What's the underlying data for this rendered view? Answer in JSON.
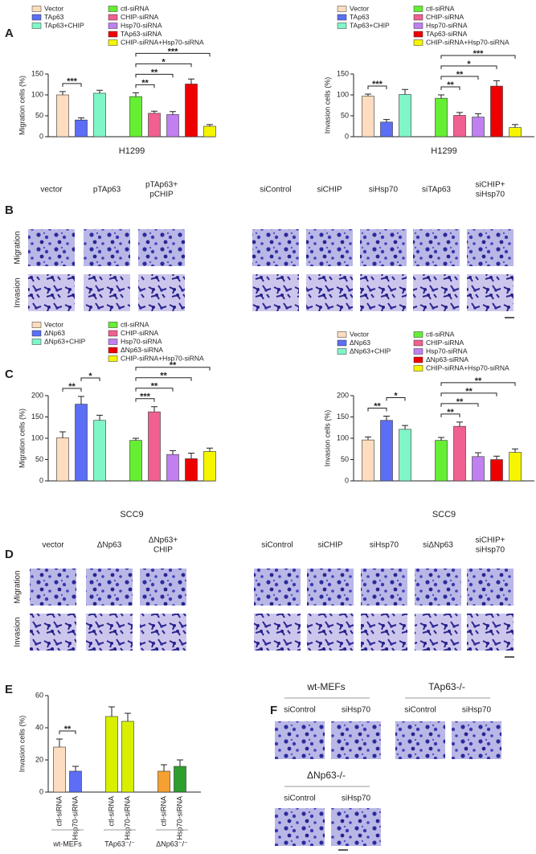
{
  "panel_labels": [
    "A",
    "B",
    "C",
    "D",
    "E",
    "F"
  ],
  "chart_data": [
    {
      "type": "bar",
      "y_label": "Migration cells (%)",
      "x_label": "H1299",
      "ylim": [
        0,
        150
      ],
      "yticks": [
        0,
        50,
        100,
        150
      ],
      "series": [
        {
          "name": "Vector",
          "color": "#fddcbf",
          "values": [
            100
          ],
          "errors": [
            8
          ]
        },
        {
          "name": "TAp63",
          "color": "#5b6ef5",
          "values": [
            40
          ],
          "errors": [
            5
          ]
        },
        {
          "name": "TAp63+CHIP",
          "color": "#80f5c8",
          "values": [
            104
          ],
          "errors": [
            7
          ]
        },
        {
          "name": "ctl-siRNA",
          "color": "#66ee33",
          "values": [
            96
          ],
          "errors": [
            9
          ]
        },
        {
          "name": "CHIP-siRNA",
          "color": "#f06090",
          "values": [
            56
          ],
          "errors": [
            5
          ]
        },
        {
          "name": "Hsp70-siRNA",
          "color": "#c080f0",
          "values": [
            53
          ],
          "errors": [
            7
          ]
        },
        {
          "name": "TAp63-siRNA",
          "color": "#ee0000",
          "values": [
            126
          ],
          "errors": [
            12
          ]
        },
        {
          "name": "CHIP-siRNA+Hsp70-siRNA",
          "color": "#f5f500",
          "values": [
            25
          ],
          "errors": [
            4
          ]
        }
      ],
      "significance": [
        {
          "bars": [
            0,
            1
          ],
          "label": "***"
        },
        {
          "bars": [
            3,
            4
          ],
          "label": "**"
        },
        {
          "bars": [
            3,
            5
          ],
          "label": "**"
        },
        {
          "bars": [
            3,
            6
          ],
          "label": "*"
        },
        {
          "bars": [
            3,
            7
          ],
          "label": "***"
        }
      ]
    },
    {
      "type": "bar",
      "y_label": "Invasion cells (%)",
      "x_label": "H1299",
      "ylim": [
        0,
        150
      ],
      "yticks": [
        0,
        50,
        100,
        150
      ],
      "series": [
        {
          "name": "Vector",
          "color": "#fddcbf",
          "values": [
            97
          ],
          "errors": [
            5
          ]
        },
        {
          "name": "TAp63",
          "color": "#5b6ef5",
          "values": [
            35
          ],
          "errors": [
            6
          ]
        },
        {
          "name": "TAp63+CHIP",
          "color": "#80f5c8",
          "values": [
            101
          ],
          "errors": [
            12
          ]
        },
        {
          "name": "ctl-siRNA",
          "color": "#66ee33",
          "values": [
            92
          ],
          "errors": [
            8
          ]
        },
        {
          "name": "CHIP-siRNA",
          "color": "#f06090",
          "values": [
            51
          ],
          "errors": [
            7
          ]
        },
        {
          "name": "Hsp70-siRNA",
          "color": "#c080f0",
          "values": [
            47
          ],
          "errors": [
            8
          ]
        },
        {
          "name": "TAp63-siRNA",
          "color": "#ee0000",
          "values": [
            121
          ],
          "errors": [
            13
          ]
        },
        {
          "name": "CHIP-siRNA+Hsp70-siRNA",
          "color": "#f5f500",
          "values": [
            22
          ],
          "errors": [
            7
          ]
        }
      ],
      "significance": [
        {
          "bars": [
            0,
            1
          ],
          "label": "***"
        },
        {
          "bars": [
            3,
            4
          ],
          "label": "**"
        },
        {
          "bars": [
            3,
            5
          ],
          "label": "**"
        },
        {
          "bars": [
            3,
            6
          ],
          "label": "*"
        },
        {
          "bars": [
            3,
            7
          ],
          "label": "***"
        }
      ]
    },
    {
      "type": "bar",
      "y_label": "Migration cells (%)",
      "x_label": "SCC9",
      "ylim": [
        0,
        200
      ],
      "yticks": [
        0,
        50,
        100,
        150,
        200
      ],
      "series": [
        {
          "name": "Vector",
          "color": "#fddcbf",
          "values": [
            101
          ],
          "errors": [
            14
          ]
        },
        {
          "name": "ΔNp63",
          "color": "#5b6ef5",
          "values": [
            180
          ],
          "errors": [
            18
          ]
        },
        {
          "name": "ΔNp63+CHIP",
          "color": "#80f5c8",
          "values": [
            142
          ],
          "errors": [
            12
          ]
        },
        {
          "name": "ctl-siRNA",
          "color": "#66ee33",
          "values": [
            95
          ],
          "errors": [
            5
          ]
        },
        {
          "name": "CHIP-siRNA",
          "color": "#f06090",
          "values": [
            162
          ],
          "errors": [
            12
          ]
        },
        {
          "name": "Hsp70-siRNA",
          "color": "#c080f0",
          "values": [
            62
          ],
          "errors": [
            9
          ]
        },
        {
          "name": "ΔNp63-siRNA",
          "color": "#ee0000",
          "values": [
            52
          ],
          "errors": [
            13
          ]
        },
        {
          "name": "CHIP-siRNA+Hsp70-siRNA",
          "color": "#f5f500",
          "values": [
            69
          ],
          "errors": [
            8
          ]
        }
      ],
      "significance": [
        {
          "bars": [
            0,
            1
          ],
          "label": "**"
        },
        {
          "bars": [
            1,
            2
          ],
          "label": "*"
        },
        {
          "bars": [
            3,
            4
          ],
          "label": "***"
        },
        {
          "bars": [
            3,
            5
          ],
          "label": "**"
        },
        {
          "bars": [
            3,
            6
          ],
          "label": "**"
        },
        {
          "bars": [
            3,
            7
          ],
          "label": "**"
        }
      ]
    },
    {
      "type": "bar",
      "y_label": "Invasion cells (%)",
      "x_label": "SCC9",
      "ylim": [
        0,
        200
      ],
      "yticks": [
        0,
        50,
        100,
        150,
        200
      ],
      "series": [
        {
          "name": "Vector",
          "color": "#fddcbf",
          "values": [
            96
          ],
          "errors": [
            7
          ]
        },
        {
          "name": "ΔNp63",
          "color": "#5b6ef5",
          "values": [
            142
          ],
          "errors": [
            10
          ]
        },
        {
          "name": "ΔNp63+CHIP",
          "color": "#80f5c8",
          "values": [
            121
          ],
          "errors": [
            9
          ]
        },
        {
          "name": "ctl-siRNA",
          "color": "#66ee33",
          "values": [
            95
          ],
          "errors": [
            7
          ]
        },
        {
          "name": "CHIP-siRNA",
          "color": "#f06090",
          "values": [
            128
          ],
          "errors": [
            10
          ]
        },
        {
          "name": "Hsp70-siRNA",
          "color": "#c080f0",
          "values": [
            57
          ],
          "errors": [
            9
          ]
        },
        {
          "name": "ΔNp63-siRNA",
          "color": "#ee0000",
          "values": [
            50
          ],
          "errors": [
            8
          ]
        },
        {
          "name": "CHIP-siRNA+Hsp70-siRNA",
          "color": "#f5f500",
          "values": [
            67
          ],
          "errors": [
            8
          ]
        }
      ],
      "significance": [
        {
          "bars": [
            0,
            1
          ],
          "label": "**"
        },
        {
          "bars": [
            1,
            2
          ],
          "label": "*"
        },
        {
          "bars": [
            3,
            4
          ],
          "label": "**"
        },
        {
          "bars": [
            3,
            5
          ],
          "label": "**"
        },
        {
          "bars": [
            3,
            6
          ],
          "label": "**"
        },
        {
          "bars": [
            3,
            7
          ],
          "label": "**"
        }
      ]
    },
    {
      "type": "bar",
      "y_label": "Invasion cells (%)",
      "ylim": [
        0,
        60
      ],
      "yticks": [
        0,
        20,
        40,
        60
      ],
      "categories": [
        "wt-MEFs",
        "TAp63⁻/⁻",
        "ΔNp63⁻/⁻"
      ],
      "series": [
        {
          "name": "ctl-siRNA",
          "colors": [
            "#fddcbf",
            "#d8f000",
            "#f5a030"
          ],
          "values": [
            28,
            47,
            13
          ],
          "errors": [
            5,
            6,
            4
          ]
        },
        {
          "name": "Hsp70-siRNA",
          "colors": [
            "#5b6ef5",
            "#d8f000",
            "#2e9e2e"
          ],
          "values": [
            13,
            44,
            16
          ],
          "errors": [
            3,
            5,
            4
          ]
        }
      ],
      "significance": [
        {
          "bars": [
            0,
            1
          ],
          "label": "**"
        }
      ]
    }
  ],
  "panel_B": {
    "columns_left": [
      [
        "vector"
      ],
      [
        "pTAp63"
      ],
      [
        "pTAp63+",
        "pCHIP"
      ]
    ],
    "columns_right": [
      [
        "siControl"
      ],
      [
        "siCHIP"
      ],
      [
        "siHsp70"
      ],
      [
        "siTAp63"
      ],
      [
        "siCHIP+",
        "siHsp70"
      ]
    ],
    "rows": [
      "Migration",
      "Invasion"
    ]
  },
  "panel_D": {
    "columns_left": [
      [
        "vector"
      ],
      [
        "ΔNp63"
      ],
      [
        "ΔNp63+",
        "CHIP"
      ]
    ],
    "columns_right": [
      [
        "siControl"
      ],
      [
        "siCHIP"
      ],
      [
        "siHsp70"
      ],
      [
        "siΔNp63"
      ],
      [
        "siCHIP+",
        "siHsp70"
      ]
    ],
    "rows": [
      "Migration",
      "Invasion"
    ]
  },
  "panel_F": {
    "groups": [
      {
        "name": "wt-MEFs",
        "columns": [
          "siControl",
          "siHsp70"
        ]
      },
      {
        "name": "TAp63-/-",
        "columns": [
          "siControl",
          "siHsp70"
        ]
      },
      {
        "name": "ΔNp63-/-",
        "columns": [
          "siControl",
          "siHsp70"
        ]
      }
    ]
  }
}
